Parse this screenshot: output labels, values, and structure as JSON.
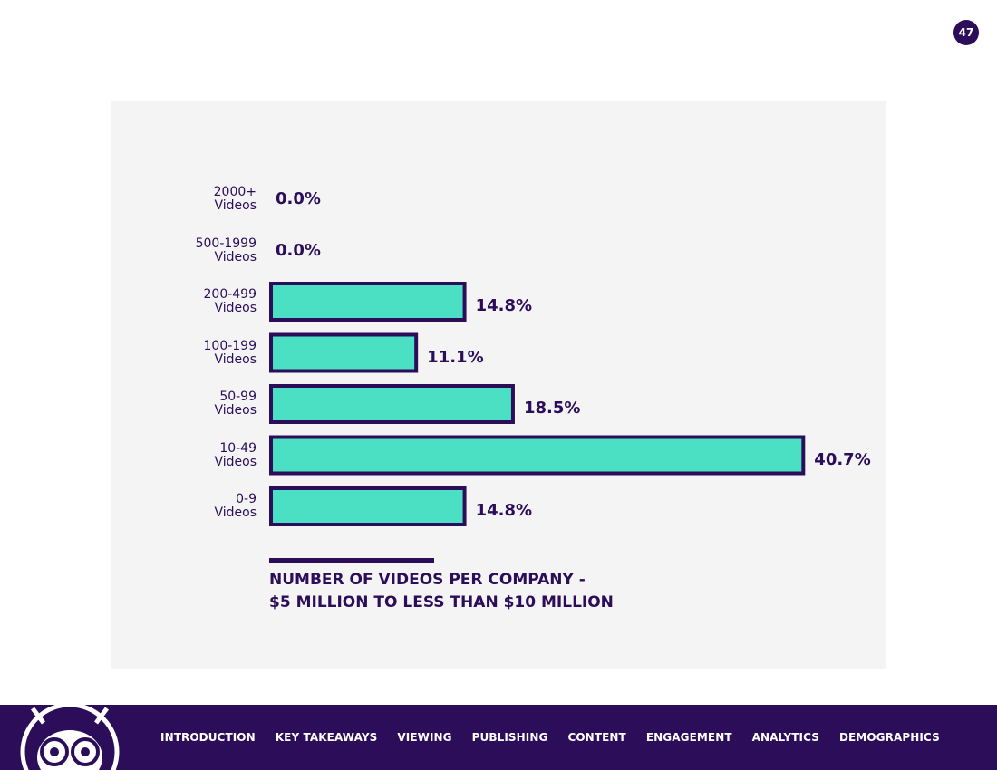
{
  "page_number": "47",
  "colors": {
    "accent": "#2b0d5a",
    "bar_fill": "#4be0c4",
    "panel": "#f4f4f4"
  },
  "chart_data": {
    "type": "bar",
    "orientation": "horizontal",
    "categories": [
      {
        "line1": "2000+",
        "line2": "Videos"
      },
      {
        "line1": "500-1999",
        "line2": "Videos"
      },
      {
        "line1": "200-499",
        "line2": "Videos"
      },
      {
        "line1": "100-199",
        "line2": "Videos"
      },
      {
        "line1": "50-99",
        "line2": "Videos"
      },
      {
        "line1": "10-49",
        "line2": "Videos"
      },
      {
        "line1": "0-9",
        "line2": "Videos"
      }
    ],
    "values": [
      0.0,
      0.0,
      14.8,
      11.1,
      18.5,
      40.7,
      14.8
    ],
    "value_labels": [
      "0.0%",
      "0.0%",
      "14.8%",
      "11.1%",
      "18.5%",
      "40.7%",
      "14.8%"
    ],
    "unit": "%",
    "title_line1": "NUMBER OF VIDEOS PER COMPANY -",
    "title_line2": "$5 MILLION TO LESS THAN $10 MILLION",
    "grid": false,
    "legend": "none"
  },
  "footer": {
    "mascot_icon": "robot-mascot-icon",
    "nav": [
      "INTRODUCTION",
      "KEY TAKEAWAYS",
      "VIEWING",
      "PUBLISHING",
      "CONTENT",
      "ENGAGEMENT",
      "ANALYTICS",
      "DEMOGRAPHICS"
    ]
  }
}
